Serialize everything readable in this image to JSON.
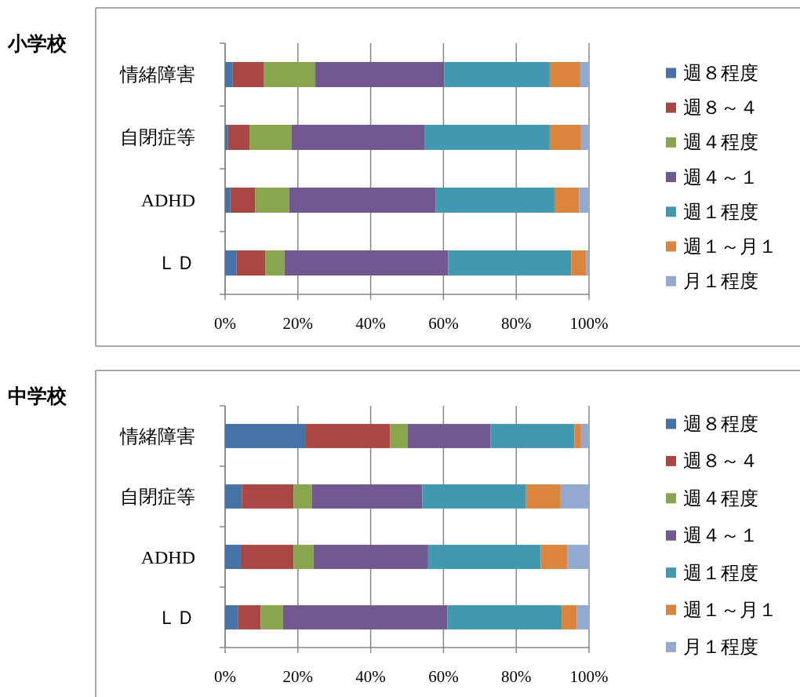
{
  "chart_data": [
    {
      "type": "bar",
      "orientation": "horizontal",
      "stacked": true,
      "title": "小学校",
      "categories": [
        "情緒障害",
        "自閉症等",
        "ADHD",
        "ＬＤ"
      ],
      "series": [
        {
          "name": "週８程度",
          "color": "#4572a7",
          "values": [
            2.1,
            0.8,
            1.4,
            3.1
          ]
        },
        {
          "name": "週８～４",
          "color": "#aa4643",
          "values": [
            8.6,
            5.9,
            6.9,
            8.0
          ]
        },
        {
          "name": "週４程度",
          "color": "#89a54e",
          "values": [
            14.1,
            11.6,
            9.3,
            5.2
          ]
        },
        {
          "name": "週４～１",
          "color": "#71588f",
          "values": [
            35.4,
            36.6,
            40.3,
            45.0
          ]
        },
        {
          "name": "週１程度",
          "color": "#4198af",
          "values": [
            29.0,
            34.3,
            32.6,
            33.8
          ]
        },
        {
          "name": "週１～月１",
          "color": "#db843d",
          "values": [
            8.4,
            8.6,
            6.8,
            4.1
          ]
        },
        {
          "name": "月１程度",
          "color": "#93a9cf",
          "values": [
            2.4,
            2.2,
            2.7,
            0.8
          ]
        }
      ],
      "xlim": [
        0,
        100
      ],
      "xticks": [
        {
          "value": 0,
          "label": "0%"
        },
        {
          "value": 20,
          "label": "20%"
        },
        {
          "value": 40,
          "label": "40%"
        },
        {
          "value": 60,
          "label": "60%"
        },
        {
          "value": 80,
          "label": "80%"
        },
        {
          "value": 100,
          "label": "100%"
        }
      ],
      "grid": "x",
      "legend": "right"
    },
    {
      "type": "bar",
      "orientation": "horizontal",
      "stacked": true,
      "title": "中学校",
      "categories": [
        "情緒障害",
        "自閉症等",
        "ADHD",
        "ＬＤ"
      ],
      "series": [
        {
          "name": "週８程度",
          "color": "#4572a7",
          "values": [
            22.0,
            4.6,
            4.3,
            3.5
          ]
        },
        {
          "name": "週８～４",
          "color": "#aa4643",
          "values": [
            23.3,
            14.2,
            14.5,
            6.3
          ]
        },
        {
          "name": "週４程度",
          "color": "#89a54e",
          "values": [
            4.8,
            5.1,
            5.5,
            6.1
          ]
        },
        {
          "name": "週４～１",
          "color": "#71588f",
          "values": [
            22.8,
            30.3,
            31.3,
            45.2
          ]
        },
        {
          "name": "週１程度",
          "color": "#4198af",
          "values": [
            23.1,
            28.5,
            31.1,
            31.4
          ]
        },
        {
          "name": "週１～月１",
          "color": "#db843d",
          "values": [
            1.8,
            9.5,
            7.4,
            4.2
          ]
        },
        {
          "name": "月１程度",
          "color": "#93a9cf",
          "values": [
            2.2,
            7.8,
            5.9,
            3.3
          ]
        }
      ],
      "xlim": [
        0,
        100
      ],
      "xticks": [
        {
          "value": 0,
          "label": "0%"
        },
        {
          "value": 20,
          "label": "20%"
        },
        {
          "value": 40,
          "label": "40%"
        },
        {
          "value": 60,
          "label": "60%"
        },
        {
          "value": 80,
          "label": "80%"
        },
        {
          "value": 100,
          "label": "100%"
        }
      ],
      "grid": "x",
      "legend": "right"
    }
  ]
}
